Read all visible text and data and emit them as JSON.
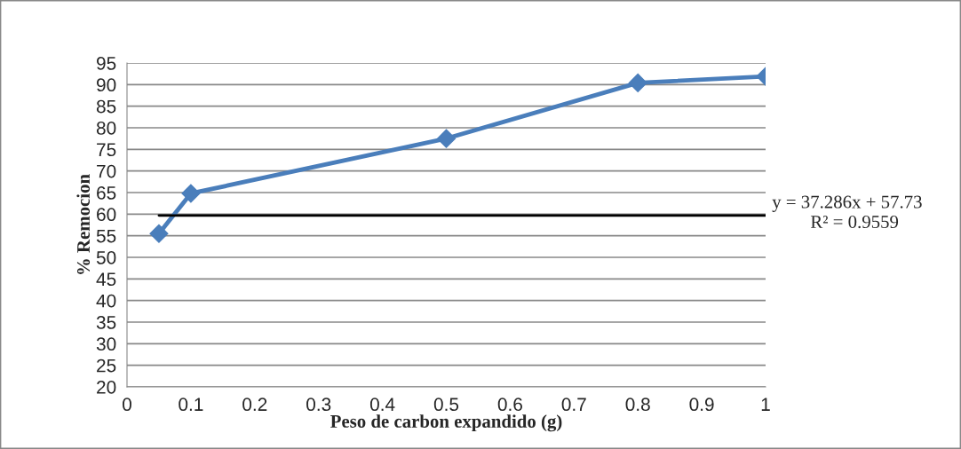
{
  "chart_data": {
    "type": "line",
    "xlabel": "Peso de carbon expandido (g)",
    "ylabel": "% Remocion",
    "x": [
      0.05,
      0.1,
      0.5,
      0.8,
      1
    ],
    "series": [
      {
        "color": "#4a7ebb",
        "values": [
          55.5,
          64.8,
          77.5,
          90.4,
          91.9
        ],
        "marker": "diamond"
      },
      {
        "type": "line",
        "color": "#000000",
        "x": [
          0.05,
          1
        ],
        "values": [
          59.7,
          59.7
        ],
        "marker": "none"
      }
    ],
    "annotations": [
      "y = 37.286x + 57.73",
      "R² = 0.9559"
    ],
    "xlim": [
      0,
      1
    ],
    "xticks": [
      0,
      0.1,
      0.2,
      0.3,
      0.4,
      0.5,
      0.6,
      0.7,
      0.8,
      0.9,
      1
    ],
    "ylim": [
      20,
      95
    ],
    "yticks": [
      20,
      25,
      30,
      35,
      40,
      45,
      50,
      55,
      60,
      65,
      70,
      75,
      80,
      85,
      90,
      95
    ],
    "grid": "y",
    "legend": false
  }
}
